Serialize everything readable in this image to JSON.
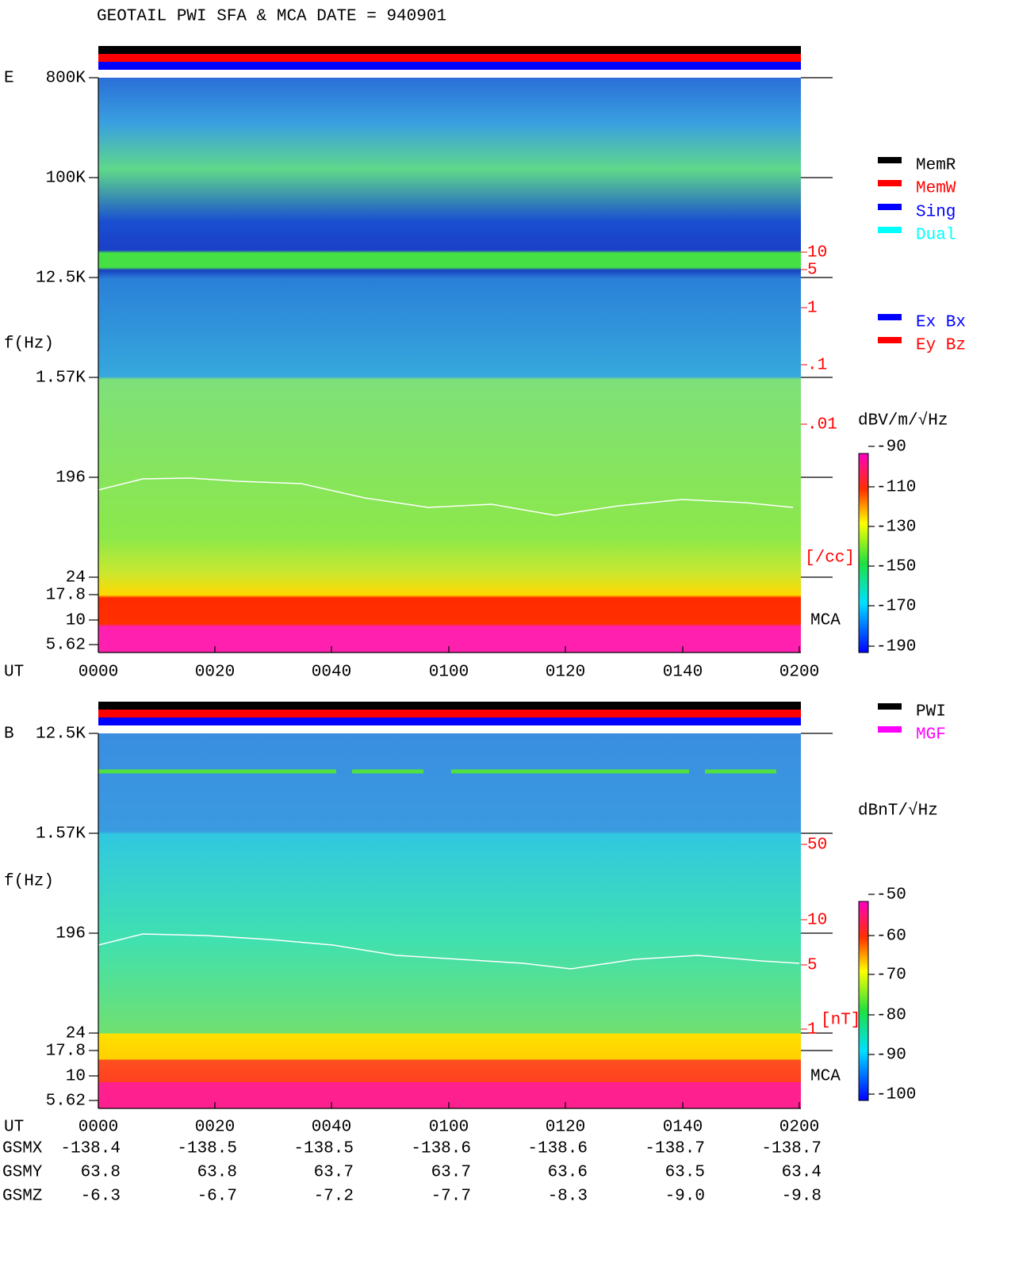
{
  "title": "GEOTAIL  PWI SFA & MCA   DATE = 940901",
  "panels": [
    {
      "label": "E",
      "y_label": "f(Hz)",
      "freq_ticks": [
        "800K",
        "100K",
        "12.5K",
        "1.57K",
        "196",
        "24",
        "17.8",
        "10",
        "5.62"
      ],
      "density_ticks": [
        "10",
        "5",
        "1",
        ".1",
        ".01"
      ],
      "density_unit": "[/cc]",
      "mca_label": "MCA",
      "colorbar_unit": "dBV/m/√Hz",
      "colorbar_ticks": [
        "-90",
        "-110",
        "-130",
        "-150",
        "-170",
        "-190"
      ],
      "legend": [
        {
          "name": "MemR",
          "color": "#000000"
        },
        {
          "name": "MemW",
          "color": "#ff0000"
        },
        {
          "name": "Sing",
          "color": "#0000ff"
        },
        {
          "name": "Dual",
          "color": "#00ffff"
        },
        {
          "name": "Ex Bx",
          "color": "#0000ff"
        },
        {
          "name": "Ey Bz",
          "color": "#ff0000"
        }
      ]
    },
    {
      "label": "B",
      "y_label": "f(Hz)",
      "freq_ticks": [
        "12.5K",
        "1.57K",
        "196",
        "24",
        "17.8",
        "10",
        "5.62"
      ],
      "density_ticks": [
        "50",
        "10",
        "5",
        "1"
      ],
      "density_unit": "[nT]",
      "mca_label": "MCA",
      "colorbar_unit": "dBnT/√Hz",
      "colorbar_ticks": [
        "-50",
        "-60",
        "-70",
        "-80",
        "-90",
        "-100"
      ],
      "legend": [
        {
          "name": "PWI",
          "color": "#000000"
        },
        {
          "name": "MGF",
          "color": "#ff00ff"
        }
      ]
    }
  ],
  "x_label": "UT",
  "x_ticks": [
    "0000",
    "0020",
    "0040",
    "0100",
    "0120",
    "0140",
    "0200"
  ],
  "orbit": [
    {
      "name": "GSMX",
      "values": [
        "-138.4",
        "-138.5",
        "-138.5",
        "-138.6",
        "-138.6",
        "-138.7",
        "-138.7"
      ]
    },
    {
      "name": "GSMY",
      "values": [
        "63.8",
        "63.8",
        "63.7",
        "63.7",
        "63.6",
        "63.5",
        "63.4"
      ]
    },
    {
      "name": "GSMZ",
      "values": [
        "-6.3",
        "-6.7",
        "-7.2",
        "-7.7",
        "-8.3",
        "-9.0",
        "-9.8"
      ]
    }
  ]
}
